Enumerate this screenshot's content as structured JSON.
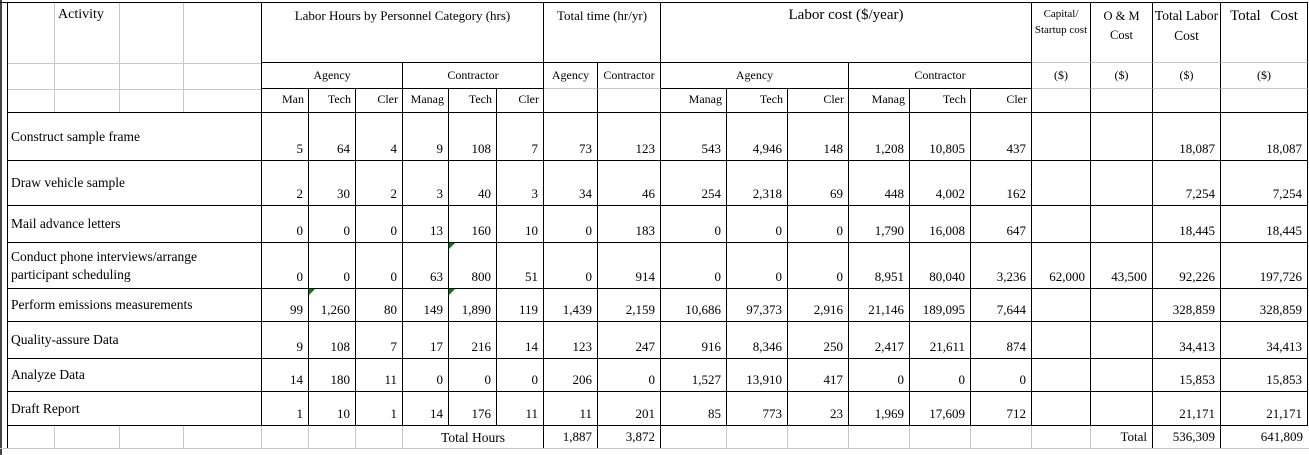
{
  "table": {
    "activity_header": "Activity",
    "col_groups": {
      "labor_hours": "Labor Hours by Personnel Category (hrs)",
      "total_time": "Total time (hr/yr)",
      "labor_cost": "Labor cost ($/year)",
      "capital": "Capital/\nStartup cost",
      "om": "O & M\nCost",
      "total_labor": "Total Labor\nCost",
      "total_cost": "Total Cost"
    },
    "subgroups": {
      "hours_agency": "Agency",
      "hours_contractor": "Contractor",
      "time_agency": "Agency",
      "time_contractor": "Contractor",
      "cost_agency": "Agency",
      "cost_contractor": "Contractor",
      "dollar": "($)"
    },
    "personnel_cols": {
      "hours_agency": [
        "Man",
        "Tech",
        "Cler"
      ],
      "hours_contractor": [
        "Manag",
        "Tech",
        "Cler"
      ],
      "cost_agency": [
        "Manag",
        "Tech",
        "Cler"
      ],
      "cost_contractor": [
        "Manag",
        "Tech",
        "Cler"
      ]
    },
    "rows": [
      {
        "activity": "Construct sample frame",
        "values": [
          "5",
          "64",
          "4",
          "9",
          "108",
          "7",
          "73",
          "123",
          "543",
          "4,946",
          "148",
          "1,208",
          "10,805",
          "437",
          "",
          "",
          "18,087",
          "18,087"
        ]
      },
      {
        "activity": "Draw vehicle sample",
        "values": [
          "2",
          "30",
          "2",
          "3",
          "40",
          "3",
          "34",
          "46",
          "254",
          "2,318",
          "69",
          "448",
          "4,002",
          "162",
          "",
          "",
          "7,254",
          "7,254"
        ]
      },
      {
        "activity": "Mail advance letters",
        "values": [
          "0",
          "0",
          "0",
          "13",
          "160",
          "10",
          "0",
          "183",
          "0",
          "0",
          "0",
          "1,790",
          "16,008",
          "647",
          "",
          "",
          "18,445",
          "18,445"
        ]
      },
      {
        "activity": "Conduct phone interviews/arrange participant scheduling",
        "values": [
          "0",
          "0",
          "0",
          "63",
          "800",
          "51",
          "0",
          "914",
          "0",
          "0",
          "0",
          "8,951",
          "80,040",
          "3,236",
          "62,000",
          "43,500",
          "92,226",
          "197,726"
        ],
        "comment_markers": [
          4
        ]
      },
      {
        "activity": "Perform emissions measurements",
        "values": [
          "99",
          "1,260",
          "80",
          "149",
          "1,890",
          "119",
          "1,439",
          "2,159",
          "10,686",
          "97,373",
          "2,916",
          "21,146",
          "189,095",
          "7,644",
          "",
          "",
          "328,859",
          "328,859"
        ],
        "comment_markers": [
          1,
          4
        ]
      },
      {
        "activity": "Quality-assure Data",
        "values": [
          "9",
          "108",
          "7",
          "17",
          "216",
          "14",
          "123",
          "247",
          "916",
          "8,346",
          "250",
          "2,417",
          "21,611",
          "874",
          "",
          "",
          "34,413",
          "34,413"
        ]
      },
      {
        "activity": "Analyze Data",
        "values": [
          "14",
          "180",
          "11",
          "0",
          "0",
          "0",
          "206",
          "0",
          "1,527",
          "13,910",
          "417",
          "0",
          "0",
          "0",
          "",
          "",
          "15,853",
          "15,853"
        ]
      },
      {
        "activity": "Draft Report",
        "values": [
          "1",
          "10",
          "1",
          "14",
          "176",
          "11",
          "11",
          "201",
          "85",
          "773",
          "23",
          "1,969",
          "17,609",
          "712",
          "",
          "",
          "21,171",
          "21,171"
        ]
      }
    ],
    "totals": {
      "hours_label": "Total Hours",
      "agency_hours": "1,887",
      "contractor_hours": "3,872",
      "total_label": "Total",
      "total_labor": "536,309",
      "total_cost": "641,809"
    },
    "colors": {
      "gridline": "#c8c8c8",
      "border": "#000000",
      "comment_marker": "#008000"
    }
  }
}
